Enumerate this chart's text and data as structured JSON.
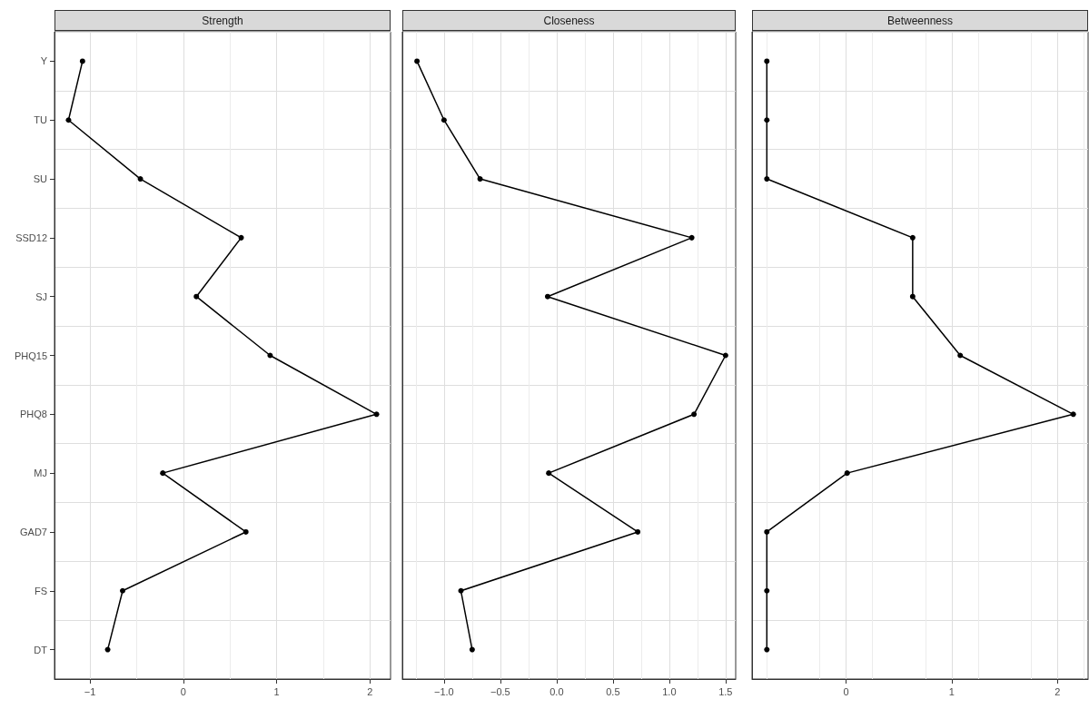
{
  "chart_data": [
    {
      "type": "line",
      "title": "Strength",
      "orientation": "horizontal",
      "categories": [
        "Y",
        "TU",
        "SU",
        "SSD12",
        "SJ",
        "PHQ15",
        "PHQ8",
        "MJ",
        "GAD7",
        "FS",
        "DT"
      ],
      "values": [
        -1.08,
        -1.23,
        -0.46,
        0.62,
        0.14,
        0.93,
        2.07,
        -0.22,
        0.67,
        -0.65,
        -0.81
      ],
      "color": "#000000",
      "xlim": [
        -1.38,
        2.22
      ],
      "xticks": [
        {
          "value": -1,
          "label": "−1"
        },
        0,
        1,
        2
      ],
      "grid": true,
      "marker": "circle",
      "line_style": "solid"
    },
    {
      "type": "line",
      "title": "Closeness",
      "orientation": "horizontal",
      "categories": [
        null,
        null,
        null,
        null,
        null,
        null,
        null,
        null,
        null,
        null,
        null
      ],
      "values": [
        -1.24,
        -1.0,
        -0.68,
        1.2,
        -0.08,
        1.5,
        1.22,
        -0.07,
        0.72,
        -0.85,
        -0.75
      ],
      "color": "#000000",
      "xlim": [
        -1.37,
        1.59
      ],
      "xticks": [
        {
          "value": -1,
          "label": "−1.0"
        },
        {
          "value": -0.5,
          "label": "−0.5"
        },
        {
          "value": 0,
          "label": "0.0"
        },
        0.5,
        {
          "value": 1,
          "label": "1.0"
        },
        1.5
      ],
      "grid": true,
      "marker": "circle",
      "line_style": "solid",
      "tick_labels": "x"
    },
    {
      "type": "line",
      "title": "Betweenness",
      "orientation": "horizontal",
      "categories": [
        null,
        null,
        null,
        null,
        null,
        null,
        null,
        null,
        null,
        null,
        null
      ],
      "values": [
        -0.75,
        -0.75,
        -0.75,
        0.63,
        0.63,
        1.08,
        2.15,
        0.01,
        -0.75,
        -0.75,
        -0.75
      ],
      "color": "#000000",
      "xlim": [
        -0.89,
        2.29
      ],
      "xticks": [
        0,
        1,
        2
      ],
      "grid": true,
      "marker": "circle",
      "line_style": "solid",
      "tick_labels": "x"
    }
  ]
}
